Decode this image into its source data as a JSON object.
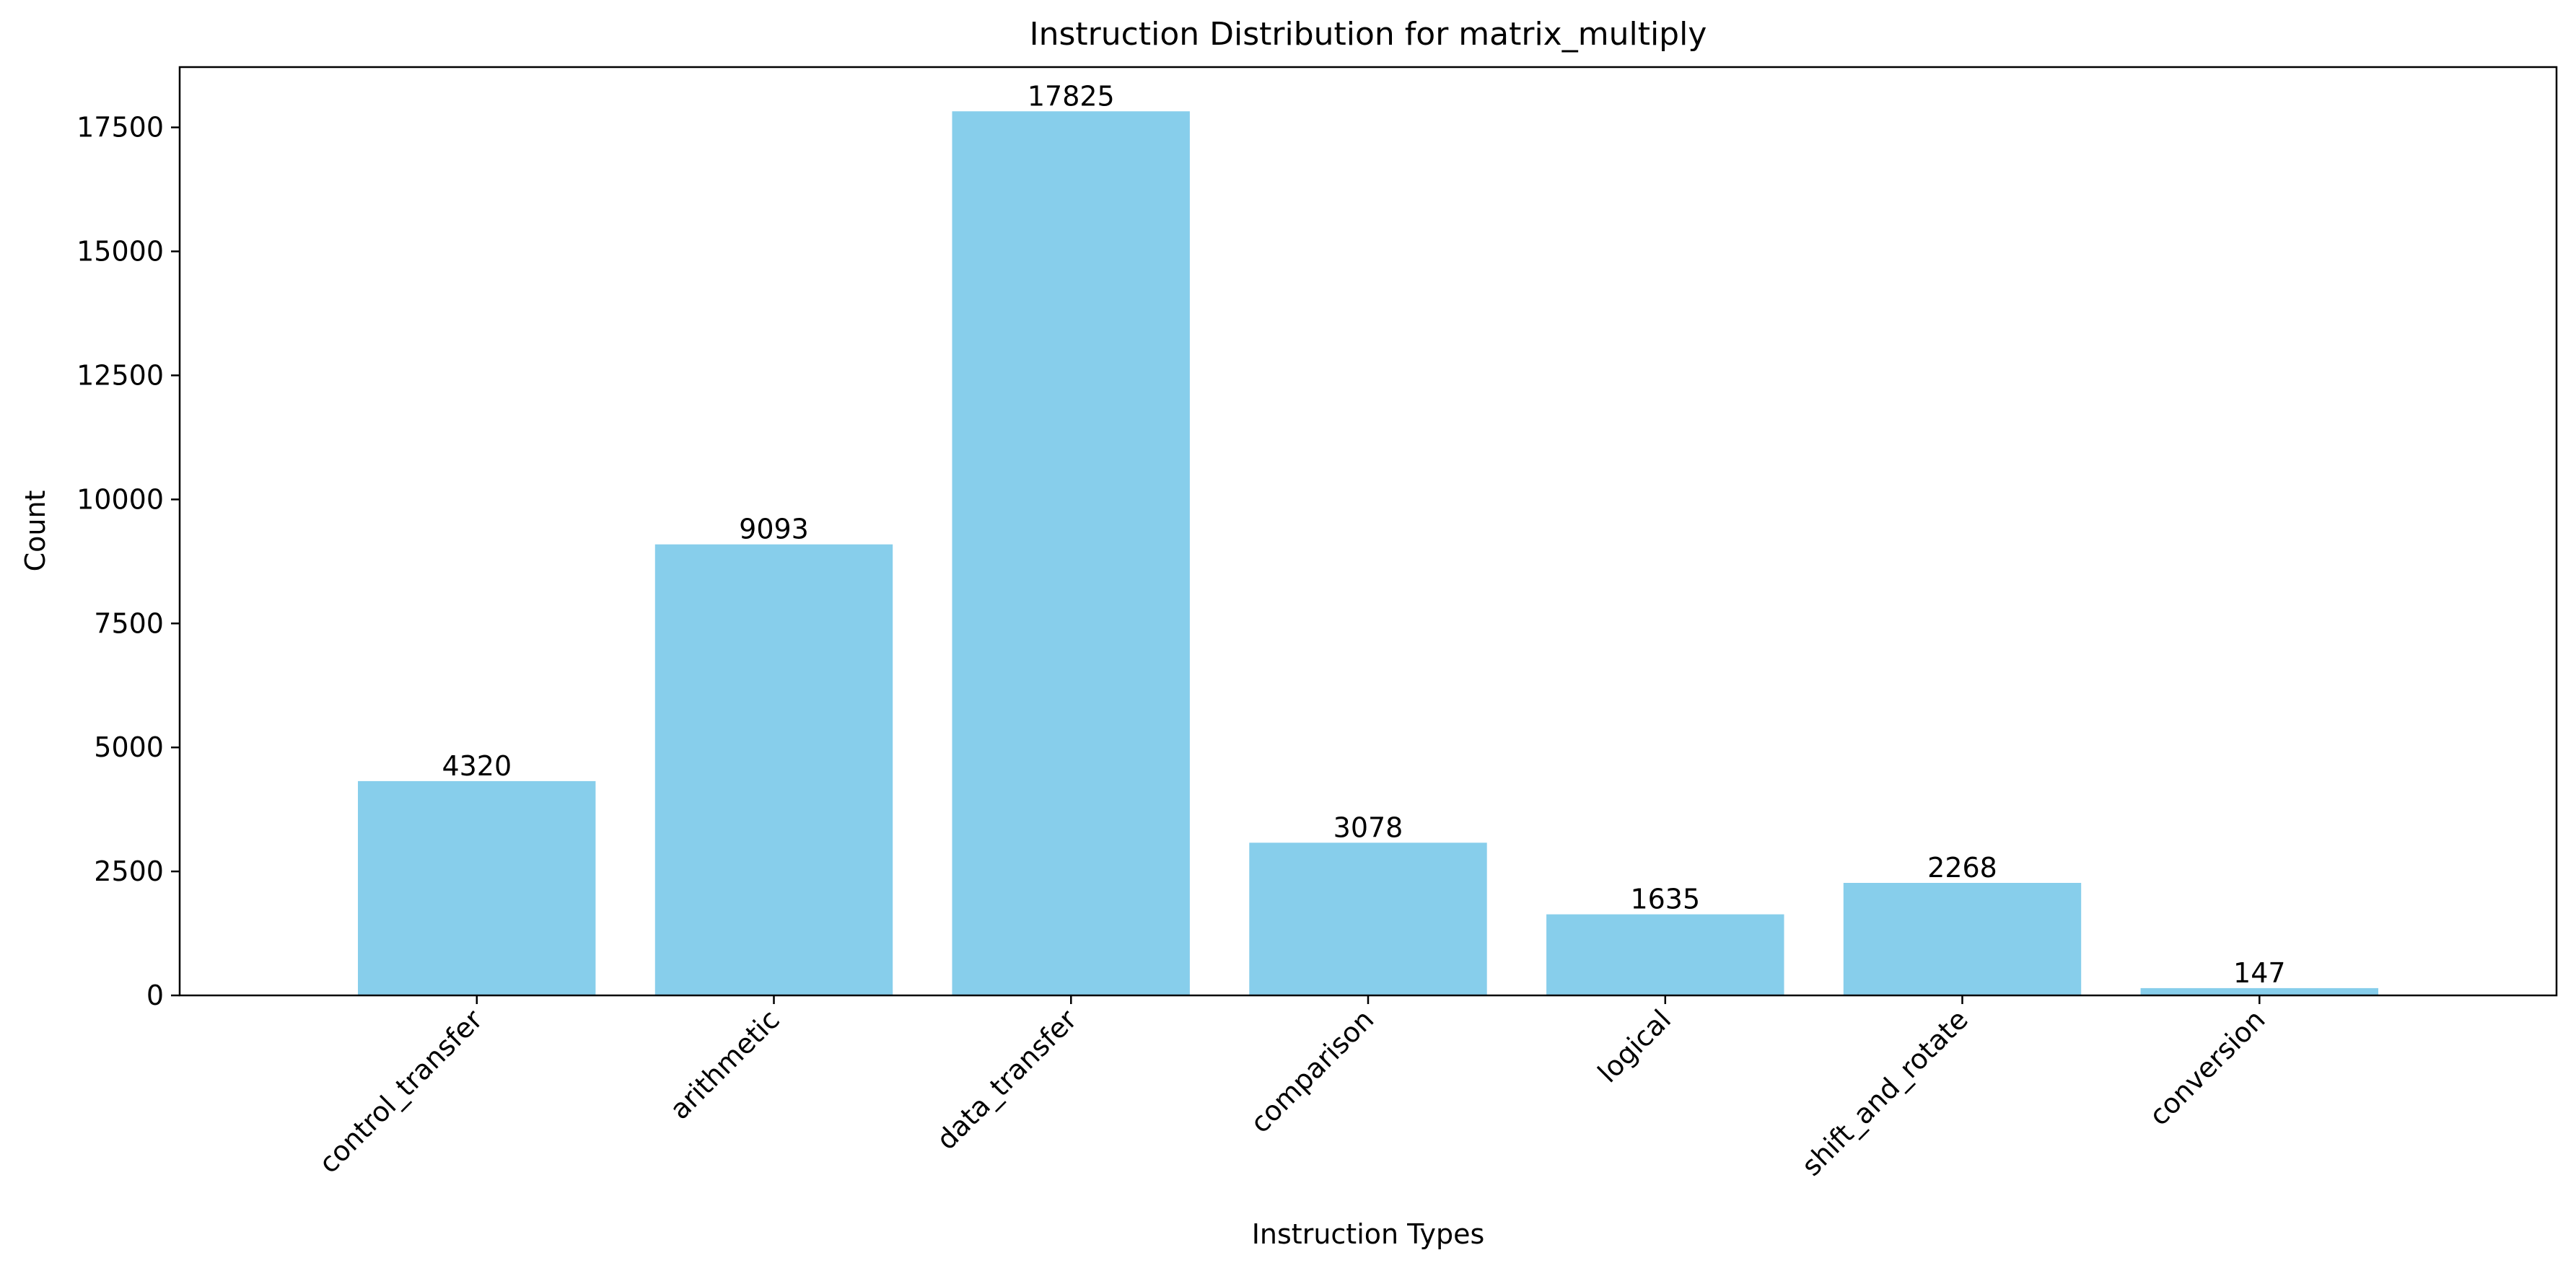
{
  "chart_data": {
    "type": "bar",
    "title": "Instruction Distribution for matrix_multiply",
    "xlabel": "Instruction Types",
    "ylabel": "Count",
    "categories": [
      "control_transfer",
      "arithmetic",
      "data_transfer",
      "comparison",
      "logical",
      "shift_and_rotate",
      "conversion"
    ],
    "values": [
      4320,
      9093,
      17825,
      3078,
      1635,
      2268,
      147
    ],
    "data_labels": [
      "4320",
      "9093",
      "17825",
      "3078",
      "1635",
      "2268",
      "147"
    ],
    "ylim": [
      0,
      18716
    ],
    "yticks": [
      0,
      2500,
      5000,
      7500,
      10000,
      12500,
      15000,
      17500
    ],
    "ytick_labels": [
      "0",
      "2500",
      "5000",
      "7500",
      "10000",
      "12500",
      "15000",
      "17500"
    ],
    "grid": false,
    "bar_color": "#87CEEB"
  }
}
